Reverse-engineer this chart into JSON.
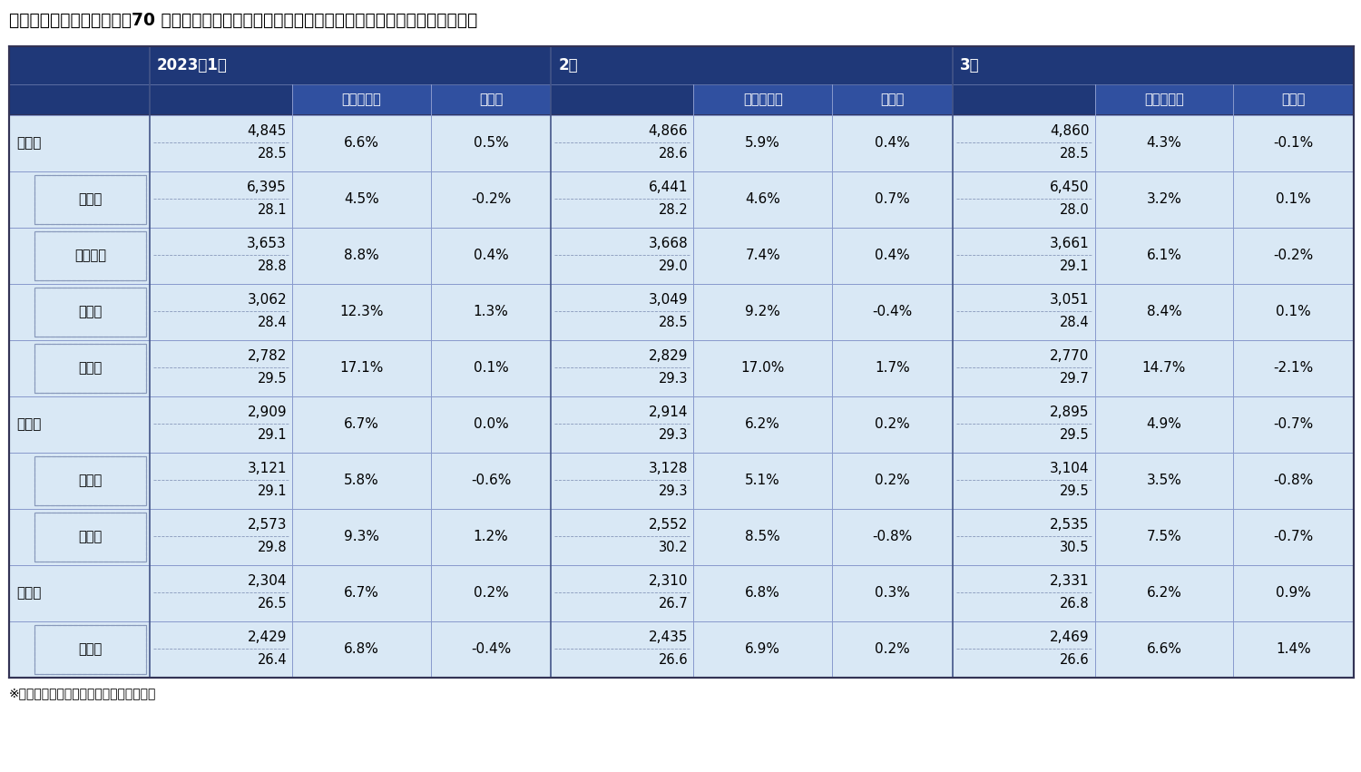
{
  "title": "三大都市圏および都府県　70 ㎡あたりの中古マンション価格　　（図中の数値は１・７月の価格）",
  "footnote": "※上段は価格（単位：万円）、下段は築年",
  "header_bg_dark": "#1f3878",
  "header_bg_medium": "#3050a0",
  "cell_bg_light": "#d9e8f5",
  "cell_bg_white": "#ffffff",
  "border_dark": "#333355",
  "border_light": "#8899bb",
  "months": [
    "2023年1月",
    "2月",
    "3月"
  ],
  "rows": [
    {
      "label": "首都圏",
      "indent": 0,
      "is_region": true,
      "data": [
        {
          "price": "4,845",
          "year": "28.5",
          "yoy": "6.6%",
          "mom": "0.5%"
        },
        {
          "price": "4,866",
          "year": "28.6",
          "yoy": "5.9%",
          "mom": "0.4%"
        },
        {
          "price": "4,860",
          "year": "28.5",
          "yoy": "4.3%",
          "mom": "-0.1%"
        }
      ]
    },
    {
      "label": "東京都",
      "indent": 1,
      "is_region": false,
      "data": [
        {
          "price": "6,395",
          "year": "28.1",
          "yoy": "4.5%",
          "mom": "-0.2%"
        },
        {
          "price": "6,441",
          "year": "28.2",
          "yoy": "4.6%",
          "mom": "0.7%"
        },
        {
          "price": "6,450",
          "year": "28.0",
          "yoy": "3.2%",
          "mom": "0.1%"
        }
      ]
    },
    {
      "label": "神奈川県",
      "indent": 1,
      "is_region": false,
      "data": [
        {
          "price": "3,653",
          "year": "28.8",
          "yoy": "8.8%",
          "mom": "0.4%"
        },
        {
          "price": "3,668",
          "year": "29.0",
          "yoy": "7.4%",
          "mom": "0.4%"
        },
        {
          "price": "3,661",
          "year": "29.1",
          "yoy": "6.1%",
          "mom": "-0.2%"
        }
      ]
    },
    {
      "label": "埼玉県",
      "indent": 1,
      "is_region": false,
      "data": [
        {
          "price": "3,062",
          "year": "28.4",
          "yoy": "12.3%",
          "mom": "1.3%"
        },
        {
          "price": "3,049",
          "year": "28.5",
          "yoy": "9.2%",
          "mom": "-0.4%"
        },
        {
          "price": "3,051",
          "year": "28.4",
          "yoy": "8.4%",
          "mom": "0.1%"
        }
      ]
    },
    {
      "label": "千葉県",
      "indent": 1,
      "is_region": false,
      "data": [
        {
          "price": "2,782",
          "year": "29.5",
          "yoy": "17.1%",
          "mom": "0.1%"
        },
        {
          "price": "2,829",
          "year": "29.3",
          "yoy": "17.0%",
          "mom": "1.7%"
        },
        {
          "price": "2,770",
          "year": "29.7",
          "yoy": "14.7%",
          "mom": "-2.1%"
        }
      ]
    },
    {
      "label": "近畿圏",
      "indent": 0,
      "is_region": true,
      "data": [
        {
          "price": "2,909",
          "year": "29.1",
          "yoy": "6.7%",
          "mom": "0.0%"
        },
        {
          "price": "2,914",
          "year": "29.3",
          "yoy": "6.2%",
          "mom": "0.2%"
        },
        {
          "price": "2,895",
          "year": "29.5",
          "yoy": "4.9%",
          "mom": "-0.7%"
        }
      ]
    },
    {
      "label": "大阪府",
      "indent": 1,
      "is_region": false,
      "data": [
        {
          "price": "3,121",
          "year": "29.1",
          "yoy": "5.8%",
          "mom": "-0.6%"
        },
        {
          "price": "3,128",
          "year": "29.3",
          "yoy": "5.1%",
          "mom": "0.2%"
        },
        {
          "price": "3,104",
          "year": "29.5",
          "yoy": "3.5%",
          "mom": "-0.8%"
        }
      ]
    },
    {
      "label": "兵庫県",
      "indent": 1,
      "is_region": false,
      "data": [
        {
          "price": "2,573",
          "year": "29.8",
          "yoy": "9.3%",
          "mom": "1.2%"
        },
        {
          "price": "2,552",
          "year": "30.2",
          "yoy": "8.5%",
          "mom": "-0.8%"
        },
        {
          "price": "2,535",
          "year": "30.5",
          "yoy": "7.5%",
          "mom": "-0.7%"
        }
      ]
    },
    {
      "label": "中部圏",
      "indent": 0,
      "is_region": true,
      "data": [
        {
          "price": "2,304",
          "year": "26.5",
          "yoy": "6.7%",
          "mom": "0.2%"
        },
        {
          "price": "2,310",
          "year": "26.7",
          "yoy": "6.8%",
          "mom": "0.3%"
        },
        {
          "price": "2,331",
          "year": "26.8",
          "yoy": "6.2%",
          "mom": "0.9%"
        }
      ]
    },
    {
      "label": "愛知県",
      "indent": 1,
      "is_region": false,
      "data": [
        {
          "price": "2,429",
          "year": "26.4",
          "yoy": "6.8%",
          "mom": "-0.4%"
        },
        {
          "price": "2,435",
          "year": "26.6",
          "yoy": "6.9%",
          "mom": "0.2%"
        },
        {
          "price": "2,469",
          "year": "26.6",
          "yoy": "6.6%",
          "mom": "1.4%"
        }
      ]
    }
  ]
}
